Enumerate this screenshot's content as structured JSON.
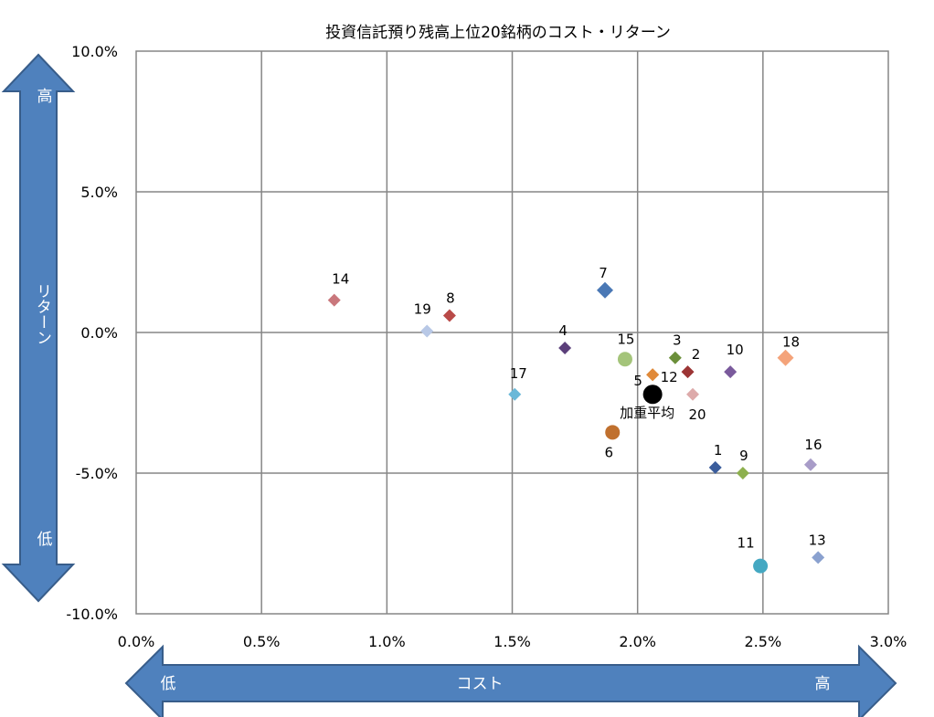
{
  "chart_data": {
    "type": "scatter",
    "title": "投資信託預り残高上位20銘柄のコスト・リターン",
    "xlim": [
      0,
      3.0
    ],
    "ylim": [
      -10,
      10
    ],
    "x_ticks": [
      "0.0%",
      "0.5%",
      "1.0%",
      "1.5%",
      "2.0%",
      "2.5%",
      "3.0%"
    ],
    "y_ticks": [
      "10.0%",
      "5.0%",
      "0.0%",
      "-5.0%",
      "-10.0%"
    ],
    "grid": true,
    "x_axis_arrow": {
      "label": "コスト",
      "low": "低",
      "high": "高"
    },
    "y_axis_arrow": {
      "label": "リターン",
      "low": "低",
      "high": "高"
    },
    "points": [
      {
        "label": "1",
        "x": 2.31,
        "y": -4.8,
        "shape": "diamond",
        "color": "#3b5d9c"
      },
      {
        "label": "2",
        "x": 2.2,
        "y": -1.4,
        "shape": "diamond",
        "color": "#9c3535"
      },
      {
        "label": "3",
        "x": 2.15,
        "y": -0.9,
        "shape": "diamond",
        "color": "#6b8f3a"
      },
      {
        "label": "4",
        "x": 1.71,
        "y": -0.55,
        "shape": "diamond",
        "color": "#5b3f7a"
      },
      {
        "label": "5",
        "x": 2.06,
        "y": -1.5,
        "shape": "diamond",
        "color": "#e08a3a"
      },
      {
        "label": "6",
        "x": 1.9,
        "y": -3.55,
        "shape": "circle",
        "color": "#c0702e"
      },
      {
        "label": "7",
        "x": 1.87,
        "y": 1.5,
        "shape": "diamond",
        "color": "#4a78b5"
      },
      {
        "label": "8",
        "x": 1.25,
        "y": 0.6,
        "shape": "diamond",
        "color": "#b94a48"
      },
      {
        "label": "9",
        "x": 2.42,
        "y": -5.0,
        "shape": "diamond",
        "color": "#8db04e"
      },
      {
        "label": "10",
        "x": 2.37,
        "y": -1.4,
        "shape": "diamond",
        "color": "#7a5a9c"
      },
      {
        "label": "11",
        "x": 2.49,
        "y": -8.3,
        "shape": "circle",
        "color": "#44a8c2"
      },
      {
        "label": "12",
        "x": 2.06,
        "y": -1.5,
        "shape": "diamond",
        "color": "#e08a3a"
      },
      {
        "label": "13",
        "x": 2.72,
        "y": -8.0,
        "shape": "diamond",
        "color": "#8aa1cf"
      },
      {
        "label": "14",
        "x": 0.79,
        "y": 1.15,
        "shape": "diamond",
        "color": "#c9777c"
      },
      {
        "label": "15",
        "x": 1.95,
        "y": -0.95,
        "shape": "circle",
        "color": "#a4c47a"
      },
      {
        "label": "16",
        "x": 2.69,
        "y": -4.7,
        "shape": "diamond",
        "color": "#a89cc8"
      },
      {
        "label": "17",
        "x": 1.51,
        "y": -2.2,
        "shape": "diamond",
        "color": "#6ab8d8"
      },
      {
        "label": "18",
        "x": 2.59,
        "y": -0.9,
        "shape": "diamond",
        "color": "#f4a37a"
      },
      {
        "label": "19",
        "x": 1.16,
        "y": 0.05,
        "shape": "diamond",
        "color": "#b8c8e6"
      },
      {
        "label": "20",
        "x": 2.22,
        "y": -2.2,
        "shape": "diamond",
        "color": "#ddaaaa"
      },
      {
        "label": "加重平均",
        "x": 2.06,
        "y": -2.2,
        "shape": "circle",
        "color": "#000000"
      }
    ]
  }
}
